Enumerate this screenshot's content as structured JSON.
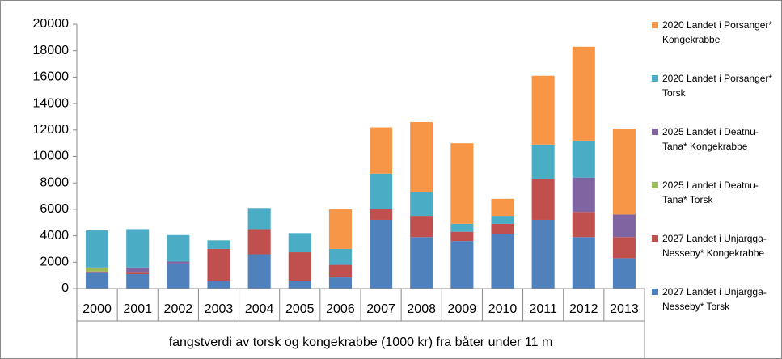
{
  "chart_data": {
    "type": "bar",
    "stacked": true,
    "xlabel": "fangstverdi av torsk og kongekrabbe (1000 kr) fra båter under 11 m",
    "categories": [
      "2000",
      "2001",
      "2002",
      "2003",
      "2004",
      "2005",
      "2006",
      "2007",
      "2008",
      "2009",
      "2010",
      "2011",
      "2012",
      "2013"
    ],
    "series": [
      {
        "name": "2027 Landet i Unjargga-Nesseby* Torsk",
        "color": "#4f81bd",
        "values": [
          1200,
          1100,
          1900,
          600,
          2600,
          600,
          850,
          5200,
          3900,
          3600,
          4100,
          5200,
          3900,
          2300
        ]
      },
      {
        "name": "2027 Landet i Unjargga-Nesseby* Kongekrabbe",
        "color": "#c0504d",
        "values": [
          100,
          100,
          0,
          2400,
          1900,
          2150,
          950,
          800,
          1600,
          700,
          800,
          3100,
          1900,
          1600
        ]
      },
      {
        "name": "2025 Landet i Deatnu-Tana* Torsk",
        "color": "#9bbb59",
        "values": [
          300,
          0,
          0,
          0,
          0,
          0,
          0,
          0,
          0,
          0,
          0,
          0,
          0,
          0
        ]
      },
      {
        "name": "2025 Landet i Deatnu-Tana* Kongekrabbe",
        "color": "#8064a2",
        "values": [
          0,
          400,
          150,
          0,
          0,
          0,
          0,
          0,
          0,
          0,
          0,
          0,
          2600,
          1700
        ]
      },
      {
        "name": "2020 Landet i Porsanger* Torsk",
        "color": "#4bacc6",
        "values": [
          2800,
          2900,
          2000,
          650,
          1600,
          1450,
          1200,
          2700,
          1800,
          600,
          600,
          2600,
          2800,
          0
        ]
      },
      {
        "name": "2020 Landet i Porsanger* Kongekrabbe",
        "color": "#f79646",
        "values": [
          0,
          0,
          0,
          0,
          0,
          0,
          3000,
          3500,
          5300,
          6100,
          1300,
          5200,
          7100,
          6500
        ]
      }
    ],
    "ylim": [
      0,
      20000
    ],
    "yticks": [
      0,
      2000,
      4000,
      6000,
      8000,
      10000,
      12000,
      14000,
      16000,
      18000,
      20000
    ],
    "grid": false,
    "legend": "right"
  }
}
